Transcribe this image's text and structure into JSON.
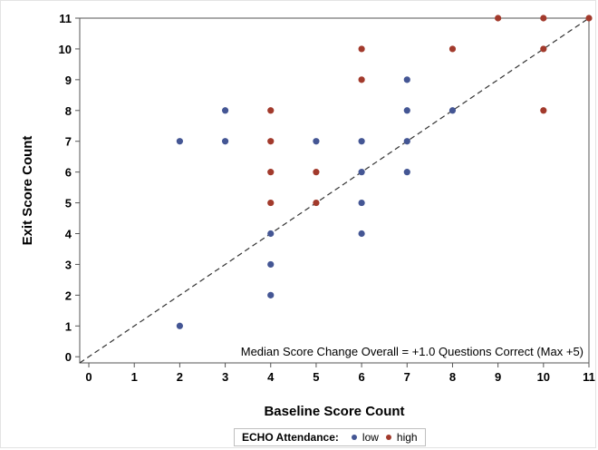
{
  "chart_data": {
    "type": "scatter",
    "title": "",
    "xlabel": "Baseline Score Count",
    "ylabel": "Exit Score Count",
    "xlim": [
      -0.2,
      11
    ],
    "ylim": [
      -0.2,
      11
    ],
    "x_ticks": [
      "0",
      "1",
      "2",
      "3",
      "4",
      "5",
      "6",
      "7",
      "8",
      "9",
      "10",
      "11"
    ],
    "y_ticks": [
      "0",
      "1",
      "2",
      "3",
      "4",
      "5",
      "6",
      "7",
      "8",
      "9",
      "10",
      "11"
    ],
    "grid": false,
    "reference_line": {
      "style": "dashed",
      "from": [
        -0.2,
        -0.2
      ],
      "to": [
        11,
        11
      ]
    },
    "annotation": "Median Score Change Overall = +1.0 Questions Correct (Max +5)",
    "legend": {
      "title": "ECHO Attendance:",
      "placement": "bottom-center",
      "entries": [
        "low",
        "high"
      ]
    },
    "series": [
      {
        "name": "low",
        "color": "#445694",
        "points": [
          [
            2,
            1
          ],
          [
            2,
            7
          ],
          [
            3,
            7
          ],
          [
            3,
            8
          ],
          [
            4,
            2
          ],
          [
            4,
            3
          ],
          [
            4,
            4
          ],
          [
            5,
            7
          ],
          [
            6,
            4
          ],
          [
            6,
            5
          ],
          [
            6,
            6
          ],
          [
            6,
            7
          ],
          [
            7,
            6
          ],
          [
            7,
            7
          ],
          [
            7,
            8
          ],
          [
            7,
            9
          ],
          [
            8,
            8
          ]
        ]
      },
      {
        "name": "high",
        "color": "#a23a2c",
        "points": [
          [
            4,
            5
          ],
          [
            4,
            6
          ],
          [
            4,
            7
          ],
          [
            4,
            8
          ],
          [
            5,
            5
          ],
          [
            5,
            6
          ],
          [
            6,
            9
          ],
          [
            6,
            10
          ],
          [
            8,
            10
          ],
          [
            9,
            11
          ],
          [
            10,
            8
          ],
          [
            10,
            10
          ],
          [
            10,
            11
          ],
          [
            11,
            11
          ]
        ]
      }
    ]
  }
}
